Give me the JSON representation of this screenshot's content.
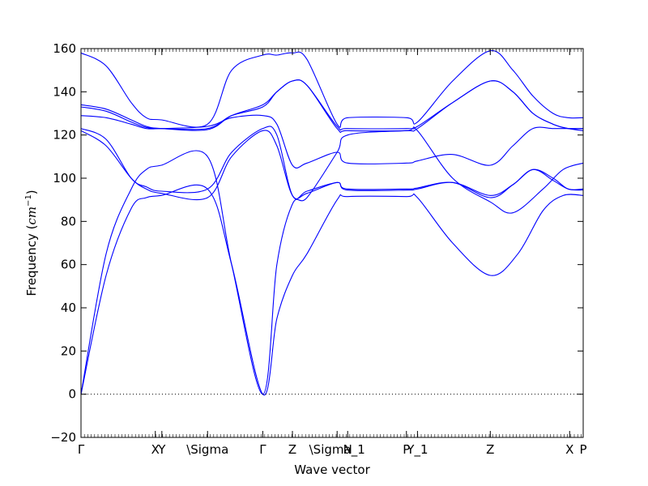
{
  "chart_data": {
    "type": "line",
    "xlabel": "Wave vector",
    "ylabel": "Frequency ($cm^{-1}$)",
    "ylabel_main": "Frequency (",
    "ylabel_unit": "cm",
    "ylabel_exp": "−1",
    "ylabel_close": ")",
    "ylim": [
      -20,
      160
    ],
    "yticks": [
      -20,
      0,
      20,
      40,
      60,
      80,
      100,
      120,
      140,
      160
    ],
    "ytick_labels": [
      "−20",
      "0",
      "20",
      "40",
      "60",
      "80",
      "100",
      "120",
      "140",
      "160"
    ],
    "xlim": [
      0,
      1
    ],
    "zero_line": true,
    "line_color": "#0000ff",
    "kpoints": [
      {
        "label": "Γ",
        "x": 0.0
      },
      {
        "label": "X",
        "x": 0.148
      },
      {
        "label": "Y",
        "x": 0.161
      },
      {
        "label": "\\Sigma",
        "x": 0.252
      },
      {
        "label": "Γ",
        "x": 0.362
      },
      {
        "label": "Z",
        "x": 0.421
      },
      {
        "label": "\\Sigma_1",
        "x": 0.51
      },
      {
        "label": "N",
        "x": 0.531
      },
      {
        "label": "P",
        "x": 0.648
      },
      {
        "label": "Y_1",
        "x": 0.67
      },
      {
        "label": "Z",
        "x": 0.815
      },
      {
        "label": "X",
        "x": 0.973
      },
      {
        "label": "P",
        "x": 1.0
      }
    ],
    "series": [
      {
        "points": [
          [
            0,
            0
          ],
          [
            0.05,
            55
          ],
          [
            0.1,
            86
          ],
          [
            0.13,
            91
          ],
          [
            0.16,
            92
          ],
          [
            0.252,
            95
          ],
          [
            0.3,
            60
          ],
          [
            0.362,
            0
          ],
          [
            0.39,
            35
          ],
          [
            0.421,
            55
          ],
          [
            0.45,
            65
          ],
          [
            0.51,
            90
          ],
          [
            0.531,
            91.5
          ],
          [
            0.648,
            91.5
          ],
          [
            0.67,
            91
          ],
          [
            0.74,
            70
          ],
          [
            0.815,
            55
          ],
          [
            0.87,
            65
          ],
          [
            0.92,
            85
          ],
          [
            0.96,
            92
          ],
          [
            1.0,
            92
          ]
        ]
      },
      {
        "points": [
          [
            0,
            0
          ],
          [
            0.05,
            65
          ],
          [
            0.1,
            95
          ],
          [
            0.13,
            104
          ],
          [
            0.16,
            106
          ],
          [
            0.252,
            110
          ],
          [
            0.3,
            60
          ],
          [
            0.362,
            0
          ],
          [
            0.39,
            60
          ],
          [
            0.421,
            88
          ],
          [
            0.45,
            91
          ],
          [
            0.51,
            112
          ],
          [
            0.531,
            120
          ],
          [
            0.648,
            122
          ],
          [
            0.67,
            122
          ],
          [
            0.74,
            100
          ],
          [
            0.815,
            89
          ],
          [
            0.86,
            84
          ],
          [
            0.92,
            95
          ],
          [
            0.96,
            104
          ],
          [
            1.0,
            107
          ]
        ]
      },
      {
        "points": [
          [
            0,
            122
          ],
          [
            0.05,
            115
          ],
          [
            0.1,
            100
          ],
          [
            0.13,
            95
          ],
          [
            0.16,
            93
          ],
          [
            0.252,
            91
          ],
          [
            0.3,
            110
          ],
          [
            0.362,
            122
          ],
          [
            0.39,
            115
          ],
          [
            0.421,
            92
          ],
          [
            0.45,
            93
          ],
          [
            0.51,
            98
          ],
          [
            0.531,
            94.5
          ],
          [
            0.648,
            94.5
          ],
          [
            0.67,
            95
          ],
          [
            0.74,
            98
          ],
          [
            0.815,
            92
          ],
          [
            0.86,
            97
          ],
          [
            0.9,
            104
          ],
          [
            0.94,
            100
          ],
          [
            0.97,
            95
          ],
          [
            1.0,
            95
          ]
        ]
      },
      {
        "points": [
          [
            0,
            123
          ],
          [
            0.05,
            118
          ],
          [
            0.1,
            100
          ],
          [
            0.13,
            96
          ],
          [
            0.16,
            94
          ],
          [
            0.252,
            95
          ],
          [
            0.3,
            112
          ],
          [
            0.362,
            123
          ],
          [
            0.39,
            120
          ],
          [
            0.421,
            92
          ],
          [
            0.45,
            94
          ],
          [
            0.51,
            98
          ],
          [
            0.531,
            95
          ],
          [
            0.648,
            95
          ],
          [
            0.67,
            95.5
          ],
          [
            0.74,
            98
          ],
          [
            0.815,
            91
          ],
          [
            0.86,
            97
          ],
          [
            0.9,
            104
          ],
          [
            0.94,
            99
          ],
          [
            0.97,
            95
          ],
          [
            1.0,
            94.5
          ]
        ]
      },
      {
        "points": [
          [
            0,
            129
          ],
          [
            0.05,
            128
          ],
          [
            0.1,
            125
          ],
          [
            0.13,
            123
          ],
          [
            0.16,
            123
          ],
          [
            0.252,
            124
          ],
          [
            0.3,
            128
          ],
          [
            0.362,
            129
          ],
          [
            0.39,
            125
          ],
          [
            0.421,
            106
          ],
          [
            0.45,
            107
          ],
          [
            0.51,
            112
          ],
          [
            0.531,
            107
          ],
          [
            0.648,
            107
          ],
          [
            0.67,
            108
          ],
          [
            0.74,
            111
          ],
          [
            0.815,
            106
          ],
          [
            0.86,
            115
          ],
          [
            0.9,
            123
          ],
          [
            0.94,
            123
          ],
          [
            0.97,
            123
          ],
          [
            1.0,
            123
          ]
        ]
      },
      {
        "points": [
          [
            0,
            133
          ],
          [
            0.05,
            131
          ],
          [
            0.1,
            126
          ],
          [
            0.13,
            123.5
          ],
          [
            0.16,
            123
          ],
          [
            0.252,
            123
          ],
          [
            0.3,
            129
          ],
          [
            0.362,
            133
          ],
          [
            0.39,
            140
          ],
          [
            0.421,
            145
          ],
          [
            0.45,
            143
          ],
          [
            0.51,
            124
          ],
          [
            0.531,
            123
          ],
          [
            0.648,
            123
          ],
          [
            0.67,
            124
          ],
          [
            0.74,
            135
          ],
          [
            0.815,
            145
          ],
          [
            0.86,
            140
          ],
          [
            0.9,
            130
          ],
          [
            0.94,
            125
          ],
          [
            0.97,
            123
          ],
          [
            1.0,
            122
          ]
        ]
      },
      {
        "points": [
          [
            0,
            134
          ],
          [
            0.05,
            132
          ],
          [
            0.1,
            127
          ],
          [
            0.13,
            124
          ],
          [
            0.16,
            123
          ],
          [
            0.252,
            122.5
          ],
          [
            0.3,
            129
          ],
          [
            0.362,
            134
          ],
          [
            0.39,
            140
          ],
          [
            0.421,
            145
          ],
          [
            0.45,
            143
          ],
          [
            0.51,
            123
          ],
          [
            0.531,
            122
          ],
          [
            0.648,
            122
          ],
          [
            0.67,
            123
          ],
          [
            0.74,
            135
          ],
          [
            0.815,
            145
          ],
          [
            0.86,
            140
          ],
          [
            0.9,
            130
          ],
          [
            0.94,
            125
          ],
          [
            0.97,
            123
          ],
          [
            1.0,
            123
          ]
        ]
      },
      {
        "points": [
          [
            0,
            158
          ],
          [
            0.05,
            152
          ],
          [
            0.1,
            135
          ],
          [
            0.13,
            128
          ],
          [
            0.16,
            127
          ],
          [
            0.252,
            125
          ],
          [
            0.3,
            150
          ],
          [
            0.362,
            157
          ],
          [
            0.39,
            157
          ],
          [
            0.421,
            158
          ],
          [
            0.45,
            155
          ],
          [
            0.51,
            125
          ],
          [
            0.531,
            128
          ],
          [
            0.648,
            128
          ],
          [
            0.67,
            126
          ],
          [
            0.74,
            145
          ],
          [
            0.815,
            159
          ],
          [
            0.86,
            150
          ],
          [
            0.9,
            138
          ],
          [
            0.94,
            130
          ],
          [
            0.97,
            128
          ],
          [
            1.0,
            128
          ]
        ]
      }
    ]
  }
}
